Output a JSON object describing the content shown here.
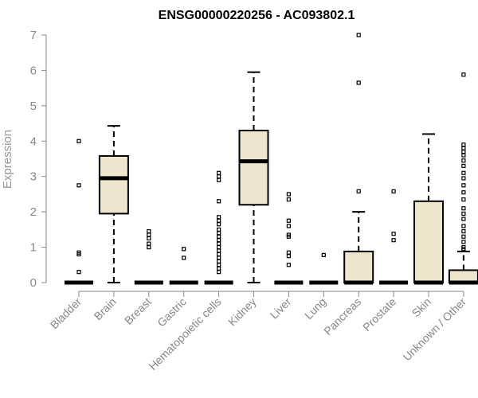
{
  "chart_data": {
    "type": "box",
    "title": "ENSG00000220256 - AC093802.1",
    "ylabel": "Expression",
    "xlabel": "",
    "ylim": [
      0,
      7
    ],
    "yticks": [
      0,
      1,
      2,
      3,
      4,
      5,
      6,
      7
    ],
    "grid": false,
    "colors": {
      "box_fill": "#ede6cc",
      "stroke": "#000000",
      "axis": "#888888"
    },
    "categories": [
      "Bladder",
      "Brain",
      "Breast",
      "Gastric",
      "Hematopoietic cells",
      "Kidney",
      "Liver",
      "Lung",
      "Pancreas",
      "Prostate",
      "Skin",
      "Unknown / Other"
    ],
    "boxes": [
      {
        "category": "Bladder",
        "min": 0,
        "q1": 0,
        "median": 0,
        "q3": 0,
        "max": 0,
        "outliers": [
          4.0,
          2.75,
          0.85,
          0.8,
          0.3
        ]
      },
      {
        "category": "Brain",
        "min": 0,
        "q1": 1.95,
        "median": 2.95,
        "q3": 3.58,
        "max": 4.43,
        "outliers": []
      },
      {
        "category": "Breast",
        "min": 0,
        "q1": 0,
        "median": 0,
        "q3": 0,
        "max": 0,
        "outliers": [
          1.45,
          1.35,
          1.25,
          1.1,
          1.0
        ]
      },
      {
        "category": "Gastric",
        "min": 0,
        "q1": 0,
        "median": 0,
        "q3": 0,
        "max": 0,
        "outliers": [
          0.95,
          0.7
        ]
      },
      {
        "category": "Hematopoietic cells",
        "min": 0,
        "q1": 0,
        "median": 0,
        "q3": 0,
        "max": 0,
        "outliers": [
          3.1,
          3.0,
          2.9,
          2.3,
          1.85,
          1.75,
          1.65,
          1.5,
          1.4,
          1.3,
          1.2,
          1.1,
          1.0,
          0.9,
          0.8,
          0.7,
          0.6,
          0.5,
          0.4,
          0.3
        ]
      },
      {
        "category": "Kidney",
        "min": 0,
        "q1": 2.2,
        "median": 3.43,
        "q3": 4.3,
        "max": 5.95,
        "outliers": []
      },
      {
        "category": "Liver",
        "min": 0,
        "q1": 0,
        "median": 0,
        "q3": 0,
        "max": 0,
        "outliers": [
          2.5,
          2.35,
          1.75,
          1.6,
          1.35,
          1.3,
          0.85,
          0.75,
          0.5
        ]
      },
      {
        "category": "Lung",
        "min": 0,
        "q1": 0,
        "median": 0,
        "q3": 0,
        "max": 0,
        "outliers": [
          0.78
        ]
      },
      {
        "category": "Pancreas",
        "min": 0,
        "q1": 0,
        "median": 0,
        "q3": 0.88,
        "max": 2.0,
        "outliers": [
          7.0,
          5.65,
          2.58
        ]
      },
      {
        "category": "Prostate",
        "min": 0,
        "q1": 0,
        "median": 0,
        "q3": 0,
        "max": 0,
        "outliers": [
          2.58,
          1.38,
          1.2
        ]
      },
      {
        "category": "Skin",
        "min": 0,
        "q1": 0,
        "median": 0,
        "q3": 2.3,
        "max": 4.2,
        "outliers": []
      },
      {
        "category": "Unknown / Other",
        "min": 0,
        "q1": 0,
        "median": 0,
        "q3": 0.35,
        "max": 0.88,
        "outliers": [
          5.88,
          3.9,
          3.8,
          3.7,
          3.6,
          3.45,
          3.3,
          3.1,
          2.95,
          2.75,
          2.55,
          2.35,
          2.1,
          1.95,
          1.8,
          1.6,
          1.45,
          1.3,
          1.15,
          1.0,
          0.95
        ]
      }
    ]
  }
}
